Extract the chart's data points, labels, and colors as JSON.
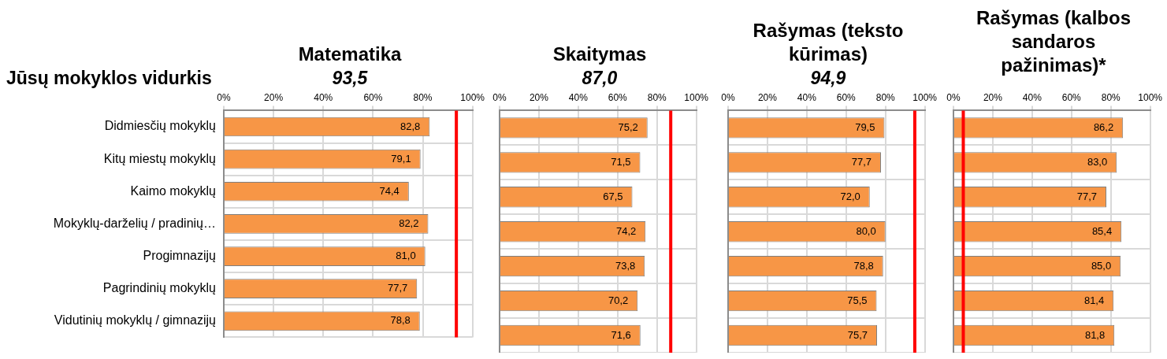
{
  "chart_data": [
    {
      "type": "bar",
      "orientation": "horizontal",
      "title": "Matematika",
      "subtitle": "93,5",
      "annotations": [
        "Jūsų mokyklos vidurkis"
      ],
      "categories": [
        "Didmiesčių mokyklų",
        "Kitų miestų mokyklų",
        "Kaimo mokyklų",
        "Mokyklų-darželių / pradinių…",
        "Progimnazijų",
        "Pagrindinių mokyklų",
        "Vidutinių mokyklų / gimnazijų"
      ],
      "values": [
        82.8,
        79.1,
        74.4,
        82.2,
        81.0,
        77.7,
        78.8
      ],
      "value_labels": [
        "82,8",
        "79,1",
        "74,4",
        "82,2",
        "81,0",
        "77,7",
        "78,8"
      ],
      "color": "#f79646",
      "xlim": [
        0,
        100
      ],
      "xticks": [
        {
          "value": 0,
          "label": "0%"
        },
        {
          "value": 20,
          "label": "20%"
        },
        {
          "value": 40,
          "label": "40%"
        },
        {
          "value": 60,
          "label": "60%"
        },
        {
          "value": 80,
          "label": "80%"
        },
        {
          "value": 100,
          "label": "100%"
        }
      ],
      "grid": true,
      "ref_lines": [
        {
          "axis": "x",
          "value": 93.5,
          "color": "#ff0000"
        }
      ]
    },
    {
      "type": "bar",
      "orientation": "horizontal",
      "title": "Skaitymas",
      "subtitle": "87,0",
      "categories": [
        null,
        null,
        null,
        null,
        null,
        null,
        null
      ],
      "values": [
        75.2,
        71.5,
        67.5,
        74.2,
        73.8,
        70.2,
        71.6
      ],
      "value_labels": [
        "75,2",
        "71,5",
        "67,5",
        "74,2",
        "73,8",
        "70,2",
        "71,6"
      ],
      "color": "#f79646",
      "xlim": [
        0,
        100
      ],
      "xticks": [
        {
          "value": 0,
          "label": "0%"
        },
        {
          "value": 20,
          "label": "20%"
        },
        {
          "value": 40,
          "label": "40%"
        },
        {
          "value": 60,
          "label": "60%"
        },
        {
          "value": 80,
          "label": "80%"
        },
        {
          "value": 100,
          "label": "100%"
        }
      ],
      "grid": true,
      "tick_labels": "x",
      "ref_lines": [
        {
          "axis": "x",
          "value": 87.0,
          "color": "#ff0000"
        }
      ]
    },
    {
      "type": "bar",
      "orientation": "horizontal",
      "title": "Rašymas (teksto kūrimas)",
      "subtitle": "94,9",
      "categories": [
        null,
        null,
        null,
        null,
        null,
        null,
        null
      ],
      "values": [
        79.5,
        77.7,
        72.0,
        80.0,
        78.8,
        75.5,
        75.7
      ],
      "value_labels": [
        "79,5",
        "77,7",
        "72,0",
        "80,0",
        "78,8",
        "75,5",
        "75,7"
      ],
      "color": "#f79646",
      "xlim": [
        0,
        100
      ],
      "xticks": [
        {
          "value": 0,
          "label": "0%"
        },
        {
          "value": 20,
          "label": "20%"
        },
        {
          "value": 40,
          "label": "40%"
        },
        {
          "value": 60,
          "label": "60%"
        },
        {
          "value": 80,
          "label": "80%"
        },
        {
          "value": 100,
          "label": "100%"
        }
      ],
      "grid": true,
      "tick_labels": "x",
      "ref_lines": [
        {
          "axis": "x",
          "value": 94.9,
          "color": "#ff0000"
        }
      ]
    },
    {
      "type": "bar",
      "orientation": "horizontal",
      "title": "Rašymas (kalbos sandaros pažinimas)*",
      "categories": [
        null,
        null,
        null,
        null,
        null,
        null,
        null
      ],
      "values": [
        86.2,
        83.0,
        77.7,
        85.4,
        85.0,
        81.4,
        81.8
      ],
      "value_labels": [
        "86,2",
        "83,0",
        "77,7",
        "85,4",
        "85,0",
        "81,4",
        "81,8"
      ],
      "color": "#f79646",
      "xlim": [
        0,
        100
      ],
      "xticks": [
        {
          "value": 0,
          "label": "0%"
        },
        {
          "value": 20,
          "label": "20%"
        },
        {
          "value": 40,
          "label": "40%"
        },
        {
          "value": 60,
          "label": "60%"
        },
        {
          "value": 80,
          "label": "80%"
        },
        {
          "value": 100,
          "label": "100%"
        }
      ],
      "grid": true,
      "tick_labels": "x",
      "ref_lines": [
        {
          "axis": "x",
          "value": 5,
          "color": "#ff0000"
        }
      ]
    }
  ]
}
